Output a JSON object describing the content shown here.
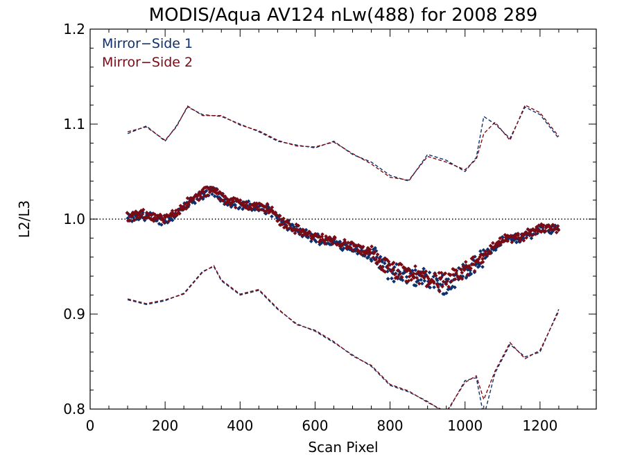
{
  "chart_data": {
    "type": "scatter",
    "title": "MODIS/Aqua AV124 nLw(488) for 2008 289",
    "xlabel": "Scan Pixel",
    "ylabel": "L2/L3",
    "xlim": [
      0,
      1350
    ],
    "ylim": [
      0.8,
      1.2
    ],
    "xticks": [
      0,
      200,
      400,
      600,
      800,
      1000,
      1200
    ],
    "yticks": [
      0.8,
      0.9,
      1.0,
      1.1,
      1.2
    ],
    "ytick_labels": [
      "0.8",
      "0.9",
      "1.0",
      "1.1",
      "1.2"
    ],
    "reference_line": 1.0,
    "legend_position": "top-left",
    "series": [
      {
        "name": "Mirror−Side 1",
        "color": "#0d2f6b",
        "mean": [
          [
            100,
            1.0
          ],
          [
            150,
            1.004
          ],
          [
            200,
            0.998
          ],
          [
            250,
            1.012
          ],
          [
            300,
            1.026
          ],
          [
            330,
            1.03
          ],
          [
            350,
            1.022
          ],
          [
            400,
            1.015
          ],
          [
            450,
            1.012
          ],
          [
            480,
            1.01
          ],
          [
            500,
            1.0
          ],
          [
            550,
            0.988
          ],
          [
            600,
            0.98
          ],
          [
            650,
            0.976
          ],
          [
            700,
            0.97
          ],
          [
            750,
            0.962
          ],
          [
            800,
            0.945
          ],
          [
            850,
            0.94
          ],
          [
            900,
            0.937
          ],
          [
            950,
            0.93
          ],
          [
            1000,
            0.945
          ],
          [
            1050,
            0.96
          ],
          [
            1100,
            0.978
          ],
          [
            1150,
            0.98
          ],
          [
            1200,
            0.99
          ],
          [
            1250,
            0.99
          ]
        ],
        "upper": [
          [
            100,
            1.09
          ],
          [
            150,
            1.098
          ],
          [
            200,
            1.082
          ],
          [
            230,
            1.098
          ],
          [
            260,
            1.118
          ],
          [
            300,
            1.11
          ],
          [
            350,
            1.108
          ],
          [
            400,
            1.1
          ],
          [
            450,
            1.092
          ],
          [
            500,
            1.082
          ],
          [
            550,
            1.078
          ],
          [
            600,
            1.075
          ],
          [
            650,
            1.082
          ],
          [
            700,
            1.068
          ],
          [
            750,
            1.06
          ],
          [
            800,
            1.046
          ],
          [
            850,
            1.04
          ],
          [
            900,
            1.068
          ],
          [
            950,
            1.062
          ],
          [
            1000,
            1.05
          ],
          [
            1030,
            1.065
          ],
          [
            1050,
            1.108
          ],
          [
            1080,
            1.1
          ],
          [
            1120,
            1.085
          ],
          [
            1160,
            1.118
          ],
          [
            1200,
            1.11
          ],
          [
            1250,
            1.085
          ]
        ],
        "lower": [
          [
            100,
            0.915
          ],
          [
            150,
            0.91
          ],
          [
            200,
            0.914
          ],
          [
            250,
            0.922
          ],
          [
            300,
            0.945
          ],
          [
            330,
            0.95
          ],
          [
            350,
            0.935
          ],
          [
            400,
            0.92
          ],
          [
            450,
            0.925
          ],
          [
            500,
            0.905
          ],
          [
            550,
            0.89
          ],
          [
            600,
            0.882
          ],
          [
            650,
            0.87
          ],
          [
            700,
            0.857
          ],
          [
            750,
            0.845
          ],
          [
            800,
            0.825
          ],
          [
            850,
            0.818
          ],
          [
            900,
            0.808
          ],
          [
            950,
            0.795
          ],
          [
            1000,
            0.83
          ],
          [
            1030,
            0.833
          ],
          [
            1050,
            0.792
          ],
          [
            1080,
            0.838
          ],
          [
            1120,
            0.868
          ],
          [
            1160,
            0.855
          ],
          [
            1200,
            0.86
          ],
          [
            1250,
            0.905
          ]
        ]
      },
      {
        "name": "Mirror−Side 2",
        "color": "#7a0a14",
        "mean": [
          [
            100,
            1.002
          ],
          [
            150,
            1.005
          ],
          [
            200,
            0.999
          ],
          [
            250,
            1.014
          ],
          [
            300,
            1.028
          ],
          [
            330,
            1.031
          ],
          [
            350,
            1.023
          ],
          [
            400,
            1.016
          ],
          [
            450,
            1.013
          ],
          [
            480,
            1.011
          ],
          [
            500,
            1.001
          ],
          [
            550,
            0.989
          ],
          [
            600,
            0.981
          ],
          [
            650,
            0.977
          ],
          [
            700,
            0.971
          ],
          [
            750,
            0.963
          ],
          [
            800,
            0.946
          ],
          [
            850,
            0.941
          ],
          [
            900,
            0.938
          ],
          [
            950,
            0.932
          ],
          [
            1000,
            0.946
          ],
          [
            1050,
            0.962
          ],
          [
            1100,
            0.979
          ],
          [
            1150,
            0.981
          ],
          [
            1200,
            0.991
          ],
          [
            1250,
            0.991
          ]
        ],
        "upper": [
          [
            100,
            1.092
          ],
          [
            150,
            1.097
          ],
          [
            200,
            1.083
          ],
          [
            230,
            1.097
          ],
          [
            260,
            1.119
          ],
          [
            300,
            1.109
          ],
          [
            350,
            1.109
          ],
          [
            400,
            1.099
          ],
          [
            450,
            1.093
          ],
          [
            500,
            1.083
          ],
          [
            550,
            1.077
          ],
          [
            600,
            1.076
          ],
          [
            650,
            1.081
          ],
          [
            700,
            1.069
          ],
          [
            750,
            1.058
          ],
          [
            800,
            1.044
          ],
          [
            850,
            1.041
          ],
          [
            900,
            1.066
          ],
          [
            950,
            1.06
          ],
          [
            1000,
            1.052
          ],
          [
            1030,
            1.063
          ],
          [
            1050,
            1.09
          ],
          [
            1080,
            1.102
          ],
          [
            1120,
            1.083
          ],
          [
            1160,
            1.12
          ],
          [
            1200,
            1.112
          ],
          [
            1250,
            1.087
          ]
        ],
        "lower": [
          [
            100,
            0.916
          ],
          [
            150,
            0.911
          ],
          [
            200,
            0.915
          ],
          [
            250,
            0.921
          ],
          [
            300,
            0.944
          ],
          [
            330,
            0.951
          ],
          [
            350,
            0.936
          ],
          [
            400,
            0.921
          ],
          [
            450,
            0.926
          ],
          [
            500,
            0.906
          ],
          [
            550,
            0.889
          ],
          [
            600,
            0.883
          ],
          [
            650,
            0.871
          ],
          [
            700,
            0.856
          ],
          [
            750,
            0.846
          ],
          [
            800,
            0.826
          ],
          [
            850,
            0.819
          ],
          [
            900,
            0.807
          ],
          [
            950,
            0.797
          ],
          [
            1000,
            0.828
          ],
          [
            1030,
            0.835
          ],
          [
            1050,
            0.81
          ],
          [
            1080,
            0.84
          ],
          [
            1120,
            0.87
          ],
          [
            1160,
            0.853
          ],
          [
            1200,
            0.862
          ],
          [
            1250,
            0.903
          ]
        ]
      }
    ]
  }
}
